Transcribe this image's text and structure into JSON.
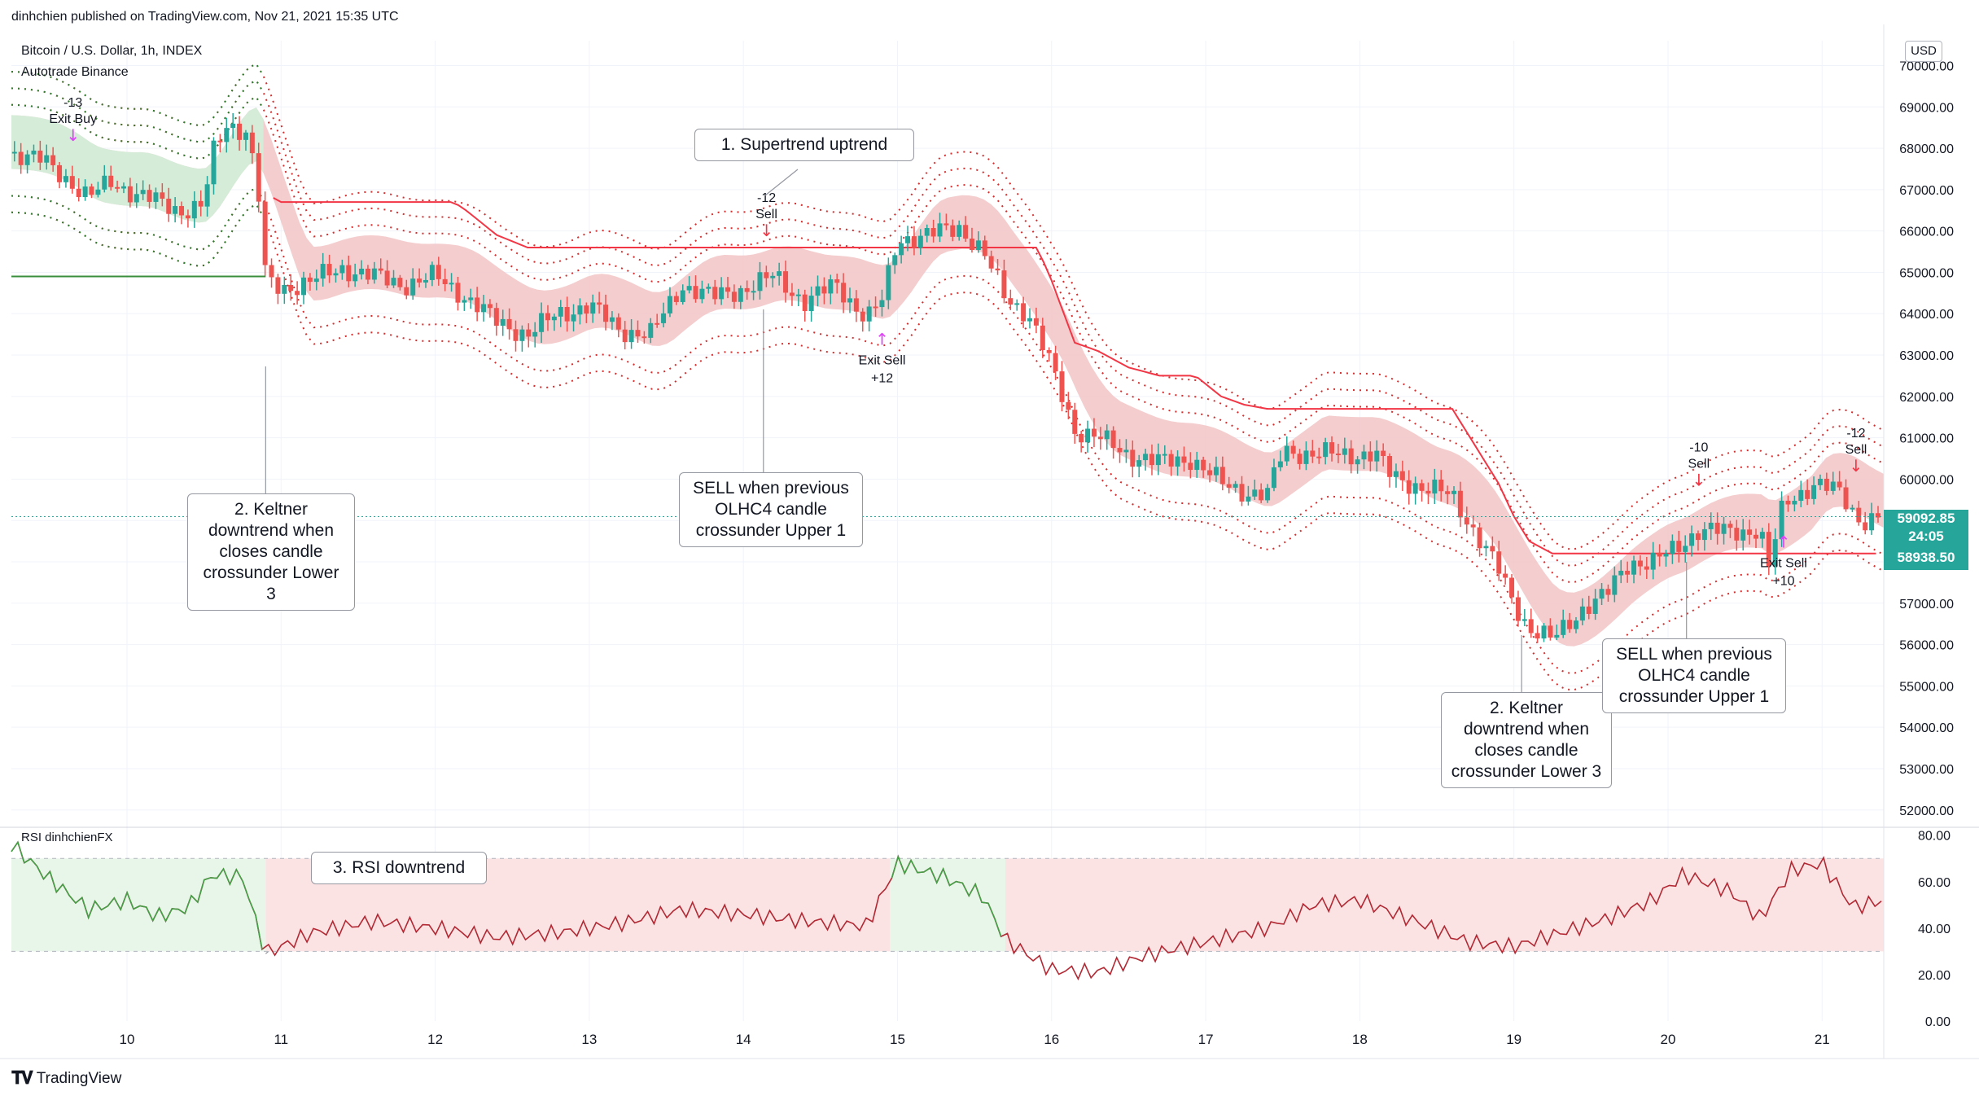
{
  "header": {
    "published": "dinhchien published on TradingView.com, Nov 21, 2021 15:35 UTC",
    "symbol": "Bitcoin / U.S. Dollar, 1h, INDEX",
    "strategy": "Autotrade Binance",
    "currency": "USD"
  },
  "footer": {
    "brand": "TradingView"
  },
  "chart_data": {
    "type": "candlestick",
    "title": "Bitcoin / U.S. Dollar, 1h, INDEX",
    "y_axis": {
      "ticks": [
        "52000.00",
        "53000.00",
        "54000.00",
        "55000.00",
        "56000.00",
        "57000.00",
        "58000.00",
        "59000.00",
        "60000.00",
        "61000.00",
        "62000.00",
        "63000.00",
        "64000.00",
        "65000.00",
        "66000.00",
        "67000.00",
        "68000.00",
        "69000.00",
        "70000.00"
      ],
      "range": [
        51700,
        70600
      ]
    },
    "x_axis": {
      "labels": [
        "10",
        "11",
        "12",
        "13",
        "14",
        "15",
        "16",
        "17",
        "18",
        "19",
        "20",
        "21"
      ],
      "range_days": [
        9.25,
        21.4
      ]
    },
    "close_series": [
      {
        "d": 9.25,
        "p": 67900
      },
      {
        "d": 9.45,
        "p": 67700
      },
      {
        "d": 9.6,
        "p": 67300
      },
      {
        "d": 9.75,
        "p": 66800
      },
      {
        "d": 9.9,
        "p": 67200
      },
      {
        "d": 10.05,
        "p": 66900
      },
      {
        "d": 10.2,
        "p": 66700
      },
      {
        "d": 10.35,
        "p": 66500
      },
      {
        "d": 10.5,
        "p": 66600
      },
      {
        "d": 10.55,
        "p": 67800
      },
      {
        "d": 10.65,
        "p": 68600
      },
      {
        "d": 10.78,
        "p": 68400
      },
      {
        "d": 10.85,
        "p": 67000
      },
      {
        "d": 10.9,
        "p": 64800
      },
      {
        "d": 11.0,
        "p": 64600
      },
      {
        "d": 11.2,
        "p": 64800
      },
      {
        "d": 11.4,
        "p": 65100
      },
      {
        "d": 11.6,
        "p": 64900
      },
      {
        "d": 11.8,
        "p": 64700
      },
      {
        "d": 12.0,
        "p": 64900
      },
      {
        "d": 12.2,
        "p": 64400
      },
      {
        "d": 12.4,
        "p": 63800
      },
      {
        "d": 12.6,
        "p": 63500
      },
      {
        "d": 12.8,
        "p": 64000
      },
      {
        "d": 13.0,
        "p": 64200
      },
      {
        "d": 13.2,
        "p": 63600
      },
      {
        "d": 13.4,
        "p": 63500
      },
      {
        "d": 13.6,
        "p": 64700
      },
      {
        "d": 13.8,
        "p": 64400
      },
      {
        "d": 14.0,
        "p": 64600
      },
      {
        "d": 14.2,
        "p": 64900
      },
      {
        "d": 14.4,
        "p": 64300
      },
      {
        "d": 14.6,
        "p": 64700
      },
      {
        "d": 14.8,
        "p": 63900
      },
      {
        "d": 14.9,
        "p": 64300
      },
      {
        "d": 15.0,
        "p": 65800
      },
      {
        "d": 15.2,
        "p": 65900
      },
      {
        "d": 15.4,
        "p": 66100
      },
      {
        "d": 15.55,
        "p": 65500
      },
      {
        "d": 15.7,
        "p": 64400
      },
      {
        "d": 15.85,
        "p": 64000
      },
      {
        "d": 16.0,
        "p": 62700
      },
      {
        "d": 16.15,
        "p": 61200
      },
      {
        "d": 16.3,
        "p": 61000
      },
      {
        "d": 16.5,
        "p": 60600
      },
      {
        "d": 16.7,
        "p": 60400
      },
      {
        "d": 16.9,
        "p": 60500
      },
      {
        "d": 17.1,
        "p": 59900
      },
      {
        "d": 17.25,
        "p": 59700
      },
      {
        "d": 17.4,
        "p": 59600
      },
      {
        "d": 17.5,
        "p": 60700
      },
      {
        "d": 17.7,
        "p": 60600
      },
      {
        "d": 17.9,
        "p": 60600
      },
      {
        "d": 18.1,
        "p": 60600
      },
      {
        "d": 18.2,
        "p": 60100
      },
      {
        "d": 18.4,
        "p": 59800
      },
      {
        "d": 18.6,
        "p": 59600
      },
      {
        "d": 18.75,
        "p": 58700
      },
      {
        "d": 18.9,
        "p": 57800
      },
      {
        "d": 19.0,
        "p": 57000
      },
      {
        "d": 19.1,
        "p": 56400
      },
      {
        "d": 19.25,
        "p": 56100
      },
      {
        "d": 19.35,
        "p": 56500
      },
      {
        "d": 19.45,
        "p": 56900
      },
      {
        "d": 19.6,
        "p": 57200
      },
      {
        "d": 19.75,
        "p": 58000
      },
      {
        "d": 19.9,
        "p": 58000
      },
      {
        "d": 20.05,
        "p": 58300
      },
      {
        "d": 20.2,
        "p": 58800
      },
      {
        "d": 20.4,
        "p": 58700
      },
      {
        "d": 20.6,
        "p": 58800
      },
      {
        "d": 20.65,
        "p": 57800
      },
      {
        "d": 20.75,
        "p": 59400
      },
      {
        "d": 20.95,
        "p": 59900
      },
      {
        "d": 21.1,
        "p": 59700
      },
      {
        "d": 21.25,
        "p": 59000
      },
      {
        "d": 21.4,
        "p": 59090
      }
    ],
    "price_tags": [
      {
        "label": "59092.85",
        "sub": "24:05",
        "value": 59092.85,
        "color": "#26a69a"
      },
      {
        "label": "58938.50",
        "value": 58938.5,
        "color": "#26a69a"
      }
    ],
    "signals": [
      {
        "text": "-13",
        "label": "Exit Buy",
        "d": 9.65
      },
      {
        "text": "-12",
        "label": "Sell",
        "d": 14.15
      },
      {
        "text": "+12",
        "label": "Exit Sell",
        "d": 14.9
      },
      {
        "text": "-10",
        "label": "Sell",
        "d": 20.2
      },
      {
        "text": "+10",
        "label": "Exit Sell",
        "d": 20.75
      },
      {
        "text": "-12",
        "label": "Sell",
        "d": 21.22
      }
    ],
    "rsi": {
      "title": "RSI dinhchienFX",
      "ticks": [
        "0.00",
        "20.00",
        "40.00",
        "60.00",
        "80.00"
      ],
      "range": [
        0,
        82
      ],
      "bands": [
        30,
        70
      ],
      "series": [
        {
          "d": 9.25,
          "v": 76
        },
        {
          "d": 9.5,
          "v": 61
        },
        {
          "d": 9.75,
          "v": 48
        },
        {
          "d": 10.0,
          "v": 52
        },
        {
          "d": 10.2,
          "v": 45
        },
        {
          "d": 10.4,
          "v": 49
        },
        {
          "d": 10.55,
          "v": 63
        },
        {
          "d": 10.75,
          "v": 62
        },
        {
          "d": 10.9,
          "v": 29
        },
        {
          "d": 11.2,
          "v": 38
        },
        {
          "d": 11.6,
          "v": 43
        },
        {
          "d": 12.0,
          "v": 40
        },
        {
          "d": 12.4,
          "v": 36
        },
        {
          "d": 12.8,
          "v": 38
        },
        {
          "d": 13.2,
          "v": 42
        },
        {
          "d": 13.6,
          "v": 48
        },
        {
          "d": 14.0,
          "v": 46
        },
        {
          "d": 14.4,
          "v": 43
        },
        {
          "d": 14.8,
          "v": 41
        },
        {
          "d": 15.0,
          "v": 68
        },
        {
          "d": 15.3,
          "v": 62
        },
        {
          "d": 15.55,
          "v": 54
        },
        {
          "d": 15.7,
          "v": 35
        },
        {
          "d": 16.0,
          "v": 22
        },
        {
          "d": 16.3,
          "v": 21
        },
        {
          "d": 16.6,
          "v": 28
        },
        {
          "d": 17.0,
          "v": 34
        },
        {
          "d": 17.4,
          "v": 40
        },
        {
          "d": 17.7,
          "v": 50
        },
        {
          "d": 18.0,
          "v": 52
        },
        {
          "d": 18.4,
          "v": 42
        },
        {
          "d": 18.7,
          "v": 34
        },
        {
          "d": 19.0,
          "v": 32
        },
        {
          "d": 19.3,
          "v": 38
        },
        {
          "d": 19.6,
          "v": 44
        },
        {
          "d": 19.9,
          "v": 52
        },
        {
          "d": 20.1,
          "v": 63
        },
        {
          "d": 20.4,
          "v": 56
        },
        {
          "d": 20.6,
          "v": 44
        },
        {
          "d": 20.8,
          "v": 65
        },
        {
          "d": 21.0,
          "v": 68
        },
        {
          "d": 21.2,
          "v": 49
        },
        {
          "d": 21.4,
          "v": 52
        }
      ]
    }
  },
  "annotations": {
    "supertrend": "1. Supertrend uptrend",
    "keltner_1": [
      "2. Keltner",
      "downtrend when",
      "closes candle",
      "crossunder Lower 3"
    ],
    "sell_1": [
      "SELL when previous",
      "OLHC4 candle",
      "crossunder Upper 1"
    ],
    "keltner_2": [
      "2. Keltner",
      "downtrend when",
      "closes candle",
      "crossunder Lower 3"
    ],
    "sell_2": [
      "SELL when previous",
      "OLHC4 candle",
      "crossunder Upper 1"
    ],
    "rsi": "3. RSI downtrend"
  },
  "colors": {
    "up": "#26a69a",
    "down": "#ef5350",
    "supertrend": "#f23645",
    "keltner_fill": "#f2c4c6",
    "green_fill": "#d5ecd9",
    "rsi_line": "#b22833",
    "signal": "#e040fb",
    "grid": "#f0f3fa"
  }
}
